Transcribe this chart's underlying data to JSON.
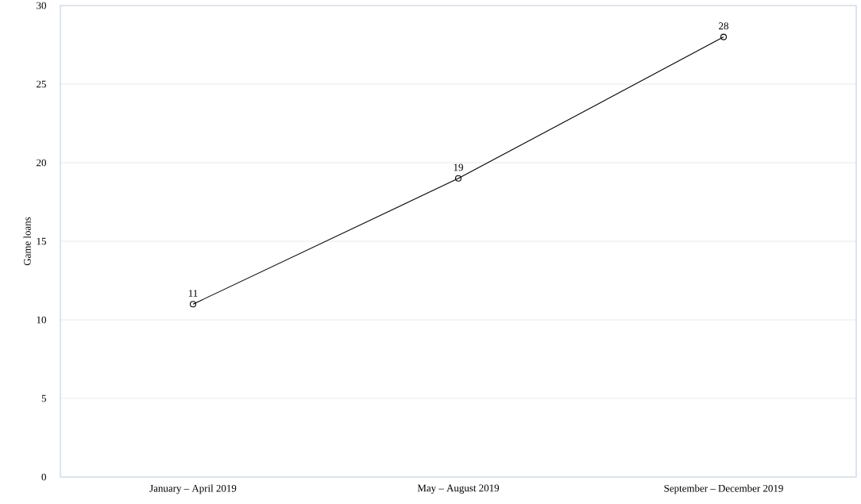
{
  "chart_data": {
    "type": "line",
    "ylabel": "Game loans",
    "categories": [
      "January – April 2019",
      "May – August 2019",
      "September – December 2019"
    ],
    "values": [
      11,
      19,
      28
    ],
    "color": "#000000",
    "marker": "circle",
    "line_style": "solid",
    "ylim": [
      0,
      30
    ],
    "yticks": [
      0,
      5,
      10,
      15,
      20,
      25,
      30
    ],
    "grid": "y",
    "data_labels": true
  }
}
